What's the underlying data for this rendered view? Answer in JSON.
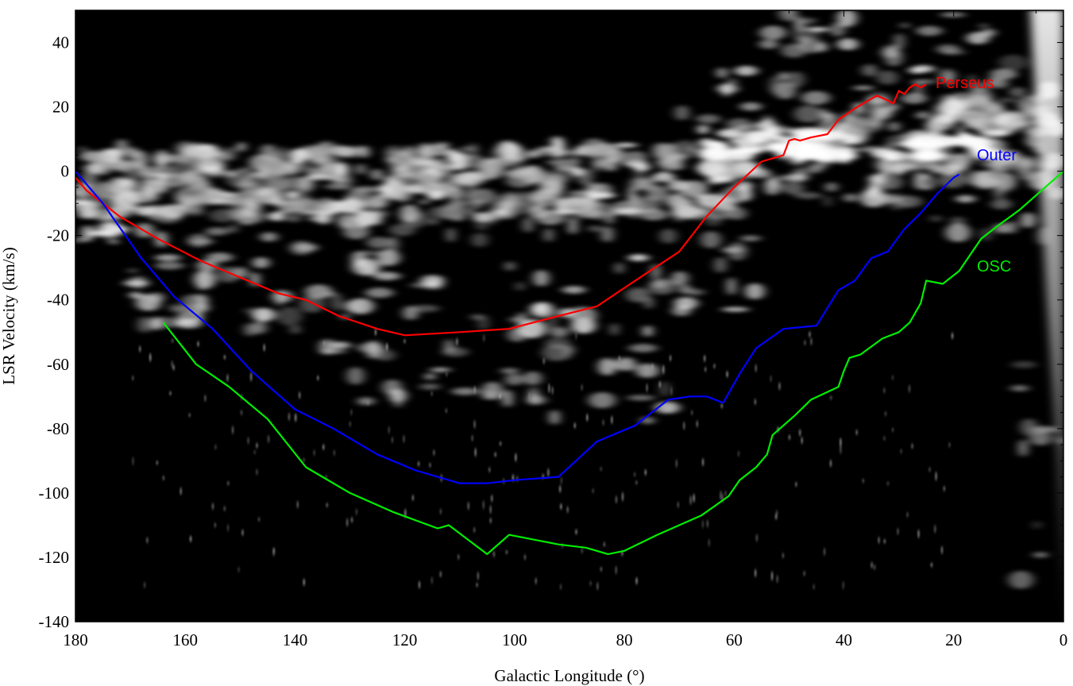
{
  "chart_data": {
    "type": "line",
    "xlabel": "Galactic Longitude (°)",
    "ylabel": "LSR Velocity (km/s)",
    "xlim": [
      180,
      0
    ],
    "ylim": [
      -140,
      50
    ],
    "x_reversed": true,
    "xticks": [
      180,
      160,
      140,
      120,
      100,
      80,
      60,
      40,
      20,
      0
    ],
    "yticks": [
      40,
      20,
      0,
      -20,
      -40,
      -60,
      -80,
      -100,
      -120,
      -140
    ],
    "background": "grayscale longitude-velocity emission map (white on black)",
    "colors": {
      "Perseus": "#ff0000",
      "Outer": "#0000ff",
      "OSC": "#00ee00"
    },
    "series": [
      {
        "name": "Perseus",
        "x": [
          180,
          178,
          172,
          165,
          157,
          150,
          143,
          138,
          132,
          125,
          120,
          110,
          101,
          92,
          85,
          78,
          70,
          65,
          60,
          55,
          51,
          50,
          49,
          48,
          46,
          43,
          41,
          38,
          34,
          32,
          31,
          30,
          29,
          28,
          27,
          26,
          25
        ],
        "y": [
          -2,
          -6,
          -14,
          -21,
          -28,
          -33,
          -38,
          -40,
          -45,
          -49,
          -51,
          -50,
          -49,
          -45,
          -42,
          -34,
          -25,
          -14,
          -5,
          3,
          5,
          9.5,
          10,
          9.5,
          10.5,
          11.5,
          16,
          19.5,
          23.5,
          22,
          21,
          25,
          24,
          26,
          27,
          26,
          27
        ]
      },
      {
        "name": "Outer",
        "x": [
          180,
          175,
          168,
          162,
          155,
          148,
          140,
          133,
          125,
          118,
          110,
          105,
          100,
          92,
          85,
          78,
          72,
          68,
          65,
          62,
          59,
          56,
          51,
          45,
          41,
          38,
          35,
          32,
          29,
          26,
          23,
          20,
          19
        ],
        "y": [
          0,
          -10,
          -27,
          -39,
          -49,
          -62,
          -74,
          -80,
          -88,
          -93,
          -97,
          -97,
          -96,
          -95,
          -84,
          -79,
          -71,
          -70,
          -70,
          -72,
          -63,
          -55,
          -49,
          -48,
          -37,
          -34,
          -27,
          -25,
          -18,
          -13,
          -7,
          -2,
          -1
        ]
      },
      {
        "name": "OSC",
        "x": [
          164,
          158,
          152,
          145,
          138,
          130,
          122,
          114,
          112,
          105,
          101,
          92,
          87,
          83,
          80,
          74,
          66,
          61,
          59,
          56,
          54,
          53,
          49,
          46,
          41,
          40,
          39,
          37,
          33,
          30,
          28,
          26,
          25,
          22,
          19,
          15,
          12,
          8,
          4,
          0
        ],
        "y": [
          -47,
          -60,
          -67,
          -77,
          -92,
          -100,
          -106,
          -111,
          -110,
          -119,
          -113,
          -116,
          -117,
          -119,
          -118,
          -113,
          -107,
          -101,
          -96,
          -92,
          -88,
          -82,
          -76,
          -71,
          -67,
          -62,
          -58,
          -57,
          -52,
          -50,
          -47,
          -41,
          -34,
          -35,
          -31,
          -21,
          -17,
          -12,
          -6,
          0
        ]
      }
    ],
    "annotations": [
      "Perseus",
      "Outer",
      "OSC"
    ]
  }
}
